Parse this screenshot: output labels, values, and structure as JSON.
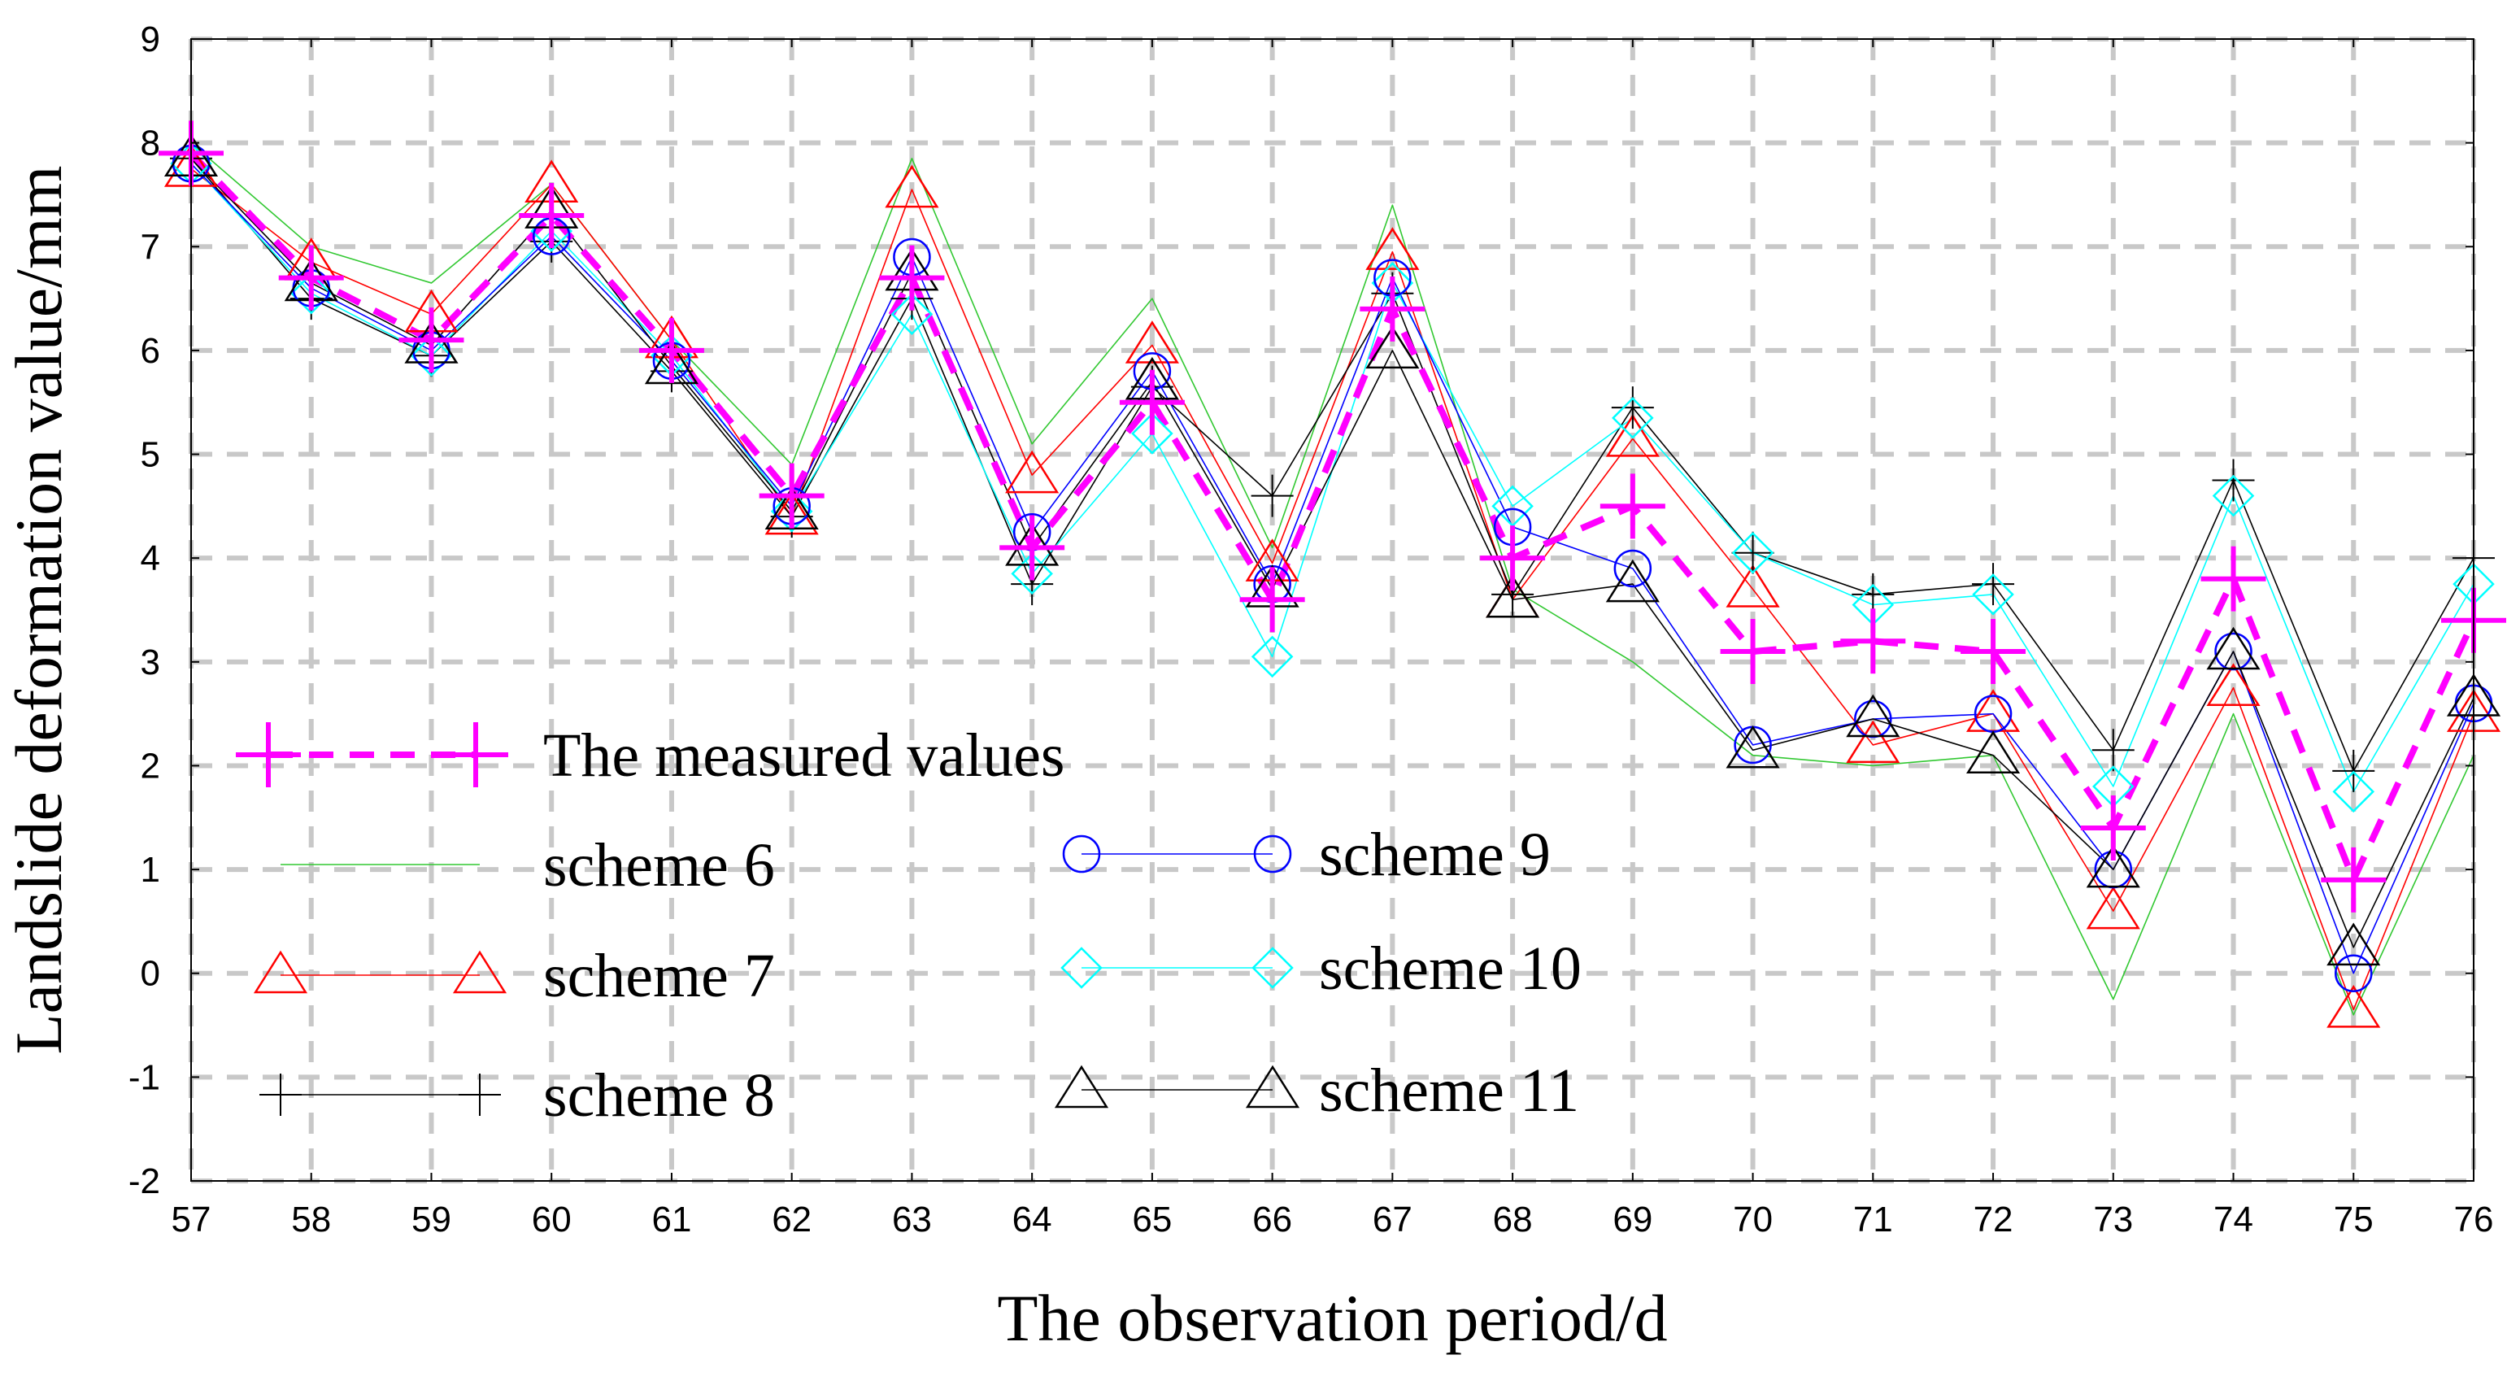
{
  "chart_data": {
    "type": "line",
    "xlabel": "The observation period/d",
    "ylabel": "Landslide deformation value/mm",
    "x": [
      57,
      58,
      59,
      60,
      61,
      62,
      63,
      64,
      65,
      66,
      67,
      68,
      69,
      70,
      71,
      72,
      73,
      74,
      75,
      76
    ],
    "xlim": [
      57,
      76
    ],
    "ylim": [
      -2,
      9
    ],
    "yticks": [
      -2,
      -1,
      0,
      1,
      2,
      3,
      4,
      5,
      6,
      7,
      8,
      9
    ],
    "grid": true,
    "legend_position": "bottom-left",
    "series": [
      {
        "name": "The measured values",
        "color": "#ff00ff",
        "marker": "plus",
        "style": "dashed",
        "values": [
          7.9,
          6.7,
          6.1,
          7.3,
          6.0,
          4.6,
          6.7,
          4.1,
          5.5,
          3.6,
          6.4,
          4.0,
          4.5,
          3.1,
          3.2,
          3.1,
          1.4,
          3.8,
          0.9,
          3.4
        ]
      },
      {
        "name": "scheme 6",
        "color": "#32c832",
        "marker": "none",
        "style": "solid",
        "values": [
          8.0,
          7.0,
          6.65,
          7.6,
          6.1,
          4.9,
          7.85,
          5.1,
          6.5,
          4.1,
          7.4,
          3.7,
          3.0,
          2.1,
          2.0,
          2.1,
          -0.25,
          2.5,
          -0.4,
          2.1
        ]
      },
      {
        "name": "scheme 7",
        "color": "#ff0000",
        "marker": "triangle",
        "style": "solid",
        "values": [
          7.75,
          6.85,
          6.35,
          7.6,
          6.1,
          4.4,
          7.55,
          4.8,
          6.05,
          3.95,
          6.95,
          3.6,
          5.15,
          3.7,
          2.2,
          2.5,
          0.6,
          2.75,
          -0.35,
          2.5
        ]
      },
      {
        "name": "scheme 8",
        "color": "#000000",
        "marker": "plus",
        "style": "solid",
        "values": [
          7.85,
          6.5,
          5.95,
          7.05,
          5.8,
          4.4,
          6.5,
          3.75,
          5.65,
          4.6,
          6.55,
          3.65,
          5.45,
          4.05,
          3.65,
          3.75,
          2.15,
          4.75,
          1.95,
          4.0
        ]
      },
      {
        "name": "scheme 9",
        "color": "#0000ff",
        "marker": "circle",
        "style": "solid",
        "values": [
          7.8,
          6.6,
          6.0,
          7.1,
          5.9,
          4.5,
          6.9,
          4.25,
          5.8,
          3.75,
          6.7,
          4.3,
          3.9,
          2.2,
          2.45,
          2.5,
          1.0,
          3.1,
          0.0,
          2.6
        ]
      },
      {
        "name": "scheme 10",
        "color": "#00ffff",
        "marker": "diamond",
        "style": "solid",
        "values": [
          7.8,
          6.55,
          5.95,
          7.15,
          5.95,
          4.45,
          6.35,
          3.85,
          5.2,
          3.05,
          6.65,
          4.5,
          5.35,
          4.05,
          3.55,
          3.65,
          1.8,
          4.6,
          1.75,
          3.75
        ]
      },
      {
        "name": "scheme 11",
        "color": "#000000",
        "marker": "triangle",
        "style": "solid",
        "values": [
          7.85,
          6.65,
          6.05,
          7.35,
          5.85,
          4.45,
          6.75,
          4.1,
          5.7,
          3.7,
          6.0,
          3.6,
          3.75,
          2.15,
          2.45,
          2.1,
          1.0,
          3.1,
          0.25,
          2.65
        ]
      }
    ]
  }
}
